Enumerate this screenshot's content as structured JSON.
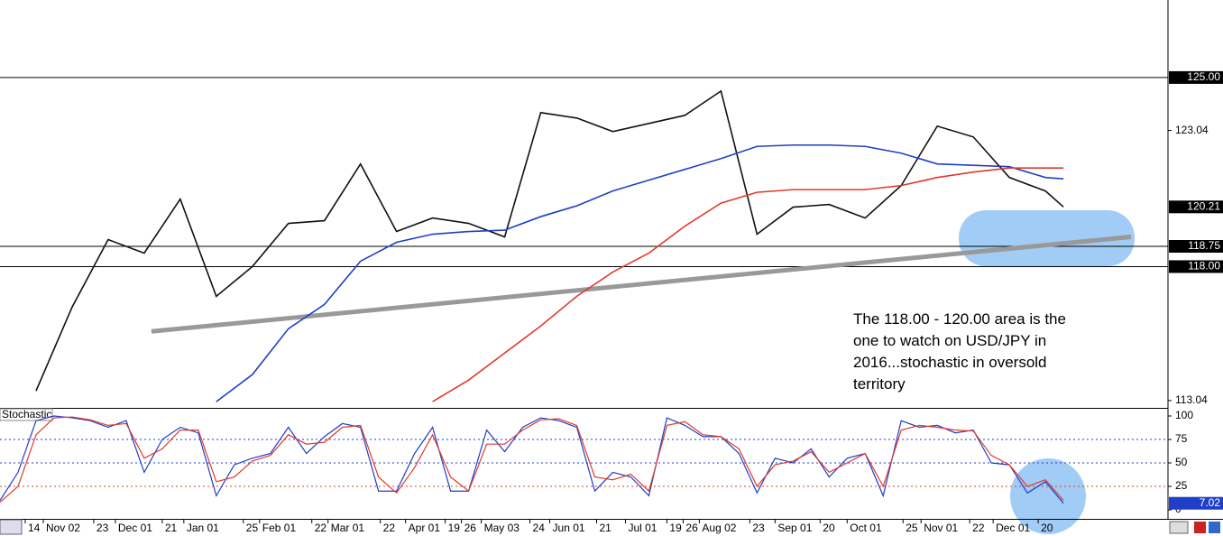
{
  "chart_data": [
    {
      "type": "line",
      "annotation": "The 118.00 - 120.00 area is the one to watch on USD/JPY in 2016...stochastic in oversold territory",
      "x": [
        0,
        10,
        20,
        30,
        40,
        50,
        60,
        70,
        80,
        90,
        100,
        110,
        120,
        130,
        140,
        150,
        160,
        170,
        180,
        190,
        200,
        210,
        220,
        230,
        240,
        250,
        260,
        270,
        280,
        290,
        295
      ],
      "series": [
        {
          "color": "#111111",
          "values": [
            null,
            113.4,
            116.5,
            119.0,
            118.5,
            120.5,
            116.9,
            118.0,
            119.6,
            119.7,
            121.8,
            119.3,
            119.8,
            119.6,
            119.1,
            123.7,
            123.5,
            123.0,
            123.3,
            123.6,
            124.5,
            119.2,
            120.2,
            120.3,
            119.8,
            121.0,
            123.2,
            122.8,
            121.3,
            120.8,
            120.21
          ]
        },
        {
          "color": "#1f3fc8",
          "values": [
            null,
            null,
            null,
            null,
            null,
            null,
            113.0,
            114.0,
            115.7,
            116.6,
            118.2,
            118.9,
            119.2,
            119.3,
            119.35,
            119.85,
            120.25,
            120.8,
            121.2,
            121.6,
            122.0,
            122.45,
            122.5,
            122.5,
            122.45,
            122.2,
            121.8,
            121.75,
            121.7,
            121.3,
            121.25
          ]
        },
        {
          "color": "#e03a2a",
          "values": [
            null,
            null,
            null,
            null,
            null,
            null,
            null,
            null,
            null,
            null,
            null,
            null,
            113.0,
            113.8,
            114.8,
            115.8,
            116.9,
            117.8,
            118.5,
            119.5,
            120.35,
            120.75,
            120.85,
            120.85,
            120.85,
            121.0,
            121.3,
            121.5,
            121.65,
            121.65,
            121.65
          ]
        }
      ],
      "trendline": {
        "color": "#999999",
        "x": [
          42,
          313.75
        ],
        "values": [
          115.6,
          119.1
        ]
      },
      "levels": [
        {
          "value": 125,
          "label": "125.00"
        },
        {
          "value": 118.75,
          "label": "118.75"
        },
        {
          "value": 118,
          "label": "118.00"
        }
      ],
      "current": {
        "value": 120.21,
        "label": "120.21"
      },
      "xlim": [
        0,
        324
      ],
      "ylim": [
        112.77,
        127.87
      ],
      "yticks": [
        {
          "value": 123.04,
          "label": "123.04"
        },
        {
          "value": 113.04,
          "label": "113.04"
        }
      ]
    },
    {
      "type": "line",
      "title": "Stochastic",
      "x": [
        0,
        5,
        10,
        15,
        20,
        25,
        30,
        35,
        40,
        45,
        50,
        55,
        60,
        65,
        70,
        75,
        80,
        85,
        90,
        95,
        100,
        105,
        110,
        115,
        120,
        125,
        130,
        135,
        140,
        145,
        150,
        155,
        160,
        165,
        170,
        175,
        180,
        185,
        190,
        195,
        200,
        205,
        210,
        215,
        220,
        225,
        230,
        235,
        240,
        245,
        250,
        255,
        260,
        265,
        270,
        275,
        280,
        285,
        290,
        295
      ],
      "series": [
        {
          "color": "#1f3fc8",
          "values": [
            10,
            40,
            95,
            100,
            98,
            95,
            88,
            95,
            40,
            75,
            88,
            82,
            15,
            48,
            55,
            60,
            88,
            60,
            78,
            92,
            88,
            20,
            20,
            60,
            88,
            20,
            20,
            85,
            62,
            88,
            98,
            95,
            88,
            20,
            40,
            35,
            15,
            98,
            90,
            78,
            78,
            60,
            18,
            55,
            50,
            65,
            35,
            55,
            60,
            15,
            95,
            88,
            90,
            82,
            85,
            50,
            48,
            18,
            30,
            7.02
          ]
        },
        {
          "color": "#e03a2a",
          "values": [
            8,
            25,
            80,
            98,
            99,
            96,
            90,
            92,
            55,
            65,
            85,
            85,
            30,
            35,
            52,
            58,
            80,
            70,
            72,
            88,
            90,
            35,
            18,
            45,
            80,
            35,
            20,
            70,
            70,
            85,
            96,
            97,
            90,
            35,
            32,
            38,
            20,
            90,
            94,
            80,
            78,
            65,
            25,
            48,
            52,
            62,
            40,
            50,
            60,
            25,
            85,
            90,
            88,
            85,
            84,
            58,
            48,
            25,
            32,
            10
          ]
        }
      ],
      "levels": [
        {
          "value": 75,
          "color": "#1f3fc8"
        },
        {
          "value": 50,
          "color": "#1f3fc8"
        },
        {
          "value": 25,
          "color": "#e03a2a"
        }
      ],
      "current": {
        "value": 7.02,
        "label": "7.02"
      },
      "xlim": [
        0,
        324
      ],
      "ylim": [
        -9.6,
        107.7
      ],
      "yticks": [
        0,
        25,
        50,
        75,
        100
      ],
      "xticks": [
        {
          "value": 7,
          "label": "14"
        },
        {
          "value": 12,
          "label": "Nov 02"
        },
        {
          "value": 26,
          "label": "23"
        },
        {
          "value": 32,
          "label": "Dec 01"
        },
        {
          "value": 45,
          "label": "21"
        },
        {
          "value": 51,
          "label": "Jan 01"
        },
        {
          "value": 67.5,
          "label": "25"
        },
        {
          "value": 72,
          "label": "Feb 01"
        },
        {
          "value": 86.5,
          "label": "22"
        },
        {
          "value": 91,
          "label": "Mar 01"
        },
        {
          "value": 105.5,
          "label": "22"
        },
        {
          "value": 112.5,
          "label": "Apr 01"
        },
        {
          "value": 123.5,
          "label": "19"
        },
        {
          "value": 128,
          "label": "26"
        },
        {
          "value": 133.5,
          "label": "May 03"
        },
        {
          "value": 147,
          "label": "24"
        },
        {
          "value": 152.5,
          "label": "Jun 01"
        },
        {
          "value": 165.5,
          "label": "21"
        },
        {
          "value": 173.5,
          "label": "Jul 01"
        },
        {
          "value": 185,
          "label": "19"
        },
        {
          "value": 189.5,
          "label": "26"
        },
        {
          "value": 194,
          "label": "Aug 02"
        },
        {
          "value": 208,
          "label": "23"
        },
        {
          "value": 215,
          "label": "Sep 01"
        },
        {
          "value": 227.5,
          "label": "20"
        },
        {
          "value": 235,
          "label": "Oct 01"
        },
        {
          "value": 250.5,
          "label": "25"
        },
        {
          "value": 255.5,
          "label": "Nov 01"
        },
        {
          "value": 269,
          "label": "22"
        },
        {
          "value": 275.5,
          "label": "Dec 01"
        },
        {
          "value": 288,
          "label": "20"
        }
      ]
    }
  ]
}
